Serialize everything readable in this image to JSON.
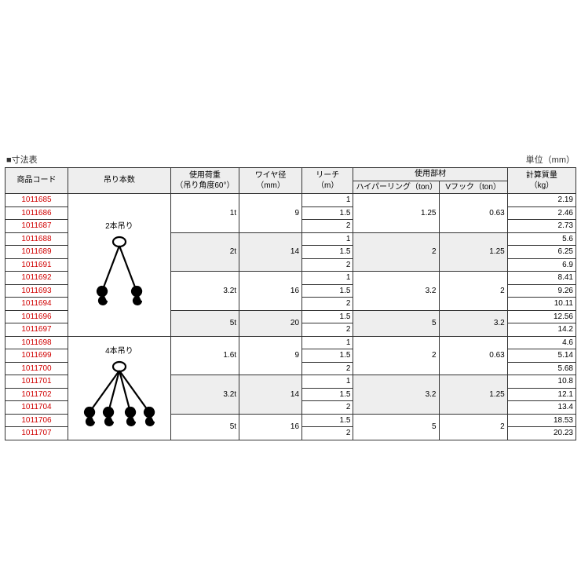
{
  "title": "寸法表",
  "unit": "単位（mm）",
  "headers": {
    "code": "商品コード",
    "sling": "吊り本数",
    "load": "使用荷重\n（吊り角度60°）",
    "wire": "ワイヤ径\n（mm）",
    "reach": "リーチ\n（m）",
    "parts": "使用部材",
    "ring": "ハイパーリング（ton）",
    "hook": "Vフック（ton）",
    "mass": "計算質量\n（kg）"
  },
  "sling_labels": {
    "two": "2本吊り",
    "four": "4本吊り"
  },
  "groups": [
    {
      "sling": "two",
      "blocks": [
        {
          "load": "1t",
          "wire": "9",
          "ring": "1.25",
          "hook": "0.63",
          "shade": false,
          "rows": [
            {
              "code": "1011685",
              "reach": "1",
              "mass": "2.19"
            },
            {
              "code": "1011686",
              "reach": "1.5",
              "mass": "2.46"
            },
            {
              "code": "1011687",
              "reach": "2",
              "mass": "2.73"
            }
          ]
        },
        {
          "load": "2t",
          "wire": "14",
          "ring": "2",
          "hook": "1.25",
          "shade": true,
          "rows": [
            {
              "code": "1011688",
              "reach": "1",
              "mass": "5.6"
            },
            {
              "code": "1011689",
              "reach": "1.5",
              "mass": "6.25"
            },
            {
              "code": "1011691",
              "reach": "2",
              "mass": "6.9"
            }
          ]
        },
        {
          "load": "3.2t",
          "wire": "16",
          "ring": "3.2",
          "hook": "2",
          "shade": false,
          "rows": [
            {
              "code": "1011692",
              "reach": "1",
              "mass": "8.41"
            },
            {
              "code": "1011693",
              "reach": "1.5",
              "mass": "9.26"
            },
            {
              "code": "1011694",
              "reach": "2",
              "mass": "10.11"
            }
          ]
        },
        {
          "load": "5t",
          "wire": "20",
          "ring": "5",
          "hook": "3.2",
          "shade": true,
          "rows": [
            {
              "code": "1011696",
              "reach": "1.5",
              "mass": "12.56"
            },
            {
              "code": "1011697",
              "reach": "2",
              "mass": "14.2"
            }
          ]
        }
      ]
    },
    {
      "sling": "four",
      "blocks": [
        {
          "load": "1.6t",
          "wire": "9",
          "ring": "2",
          "hook": "0.63",
          "shade": false,
          "rows": [
            {
              "code": "1011698",
              "reach": "1",
              "mass": "4.6"
            },
            {
              "code": "1011699",
              "reach": "1.5",
              "mass": "5.14"
            },
            {
              "code": "1011700",
              "reach": "2",
              "mass": "5.68"
            }
          ]
        },
        {
          "load": "3.2t",
          "wire": "14",
          "ring": "3.2",
          "hook": "1.25",
          "shade": true,
          "rows": [
            {
              "code": "1011701",
              "reach": "1",
              "mass": "10.8"
            },
            {
              "code": "1011702",
              "reach": "1.5",
              "mass": "12.1"
            },
            {
              "code": "1011704",
              "reach": "2",
              "mass": "13.4"
            }
          ]
        },
        {
          "load": "5t",
          "wire": "16",
          "ring": "5",
          "hook": "2",
          "shade": false,
          "rows": [
            {
              "code": "1011706",
              "reach": "1.5",
              "mass": "18.53"
            },
            {
              "code": "1011707",
              "reach": "2",
              "mass": "20.23"
            }
          ]
        }
      ]
    }
  ],
  "style": {
    "text_color": "#333333",
    "code_color": "#d00000",
    "header_bg": "#eeeeee",
    "border_color": "#333333",
    "font_size_pt": 10
  }
}
